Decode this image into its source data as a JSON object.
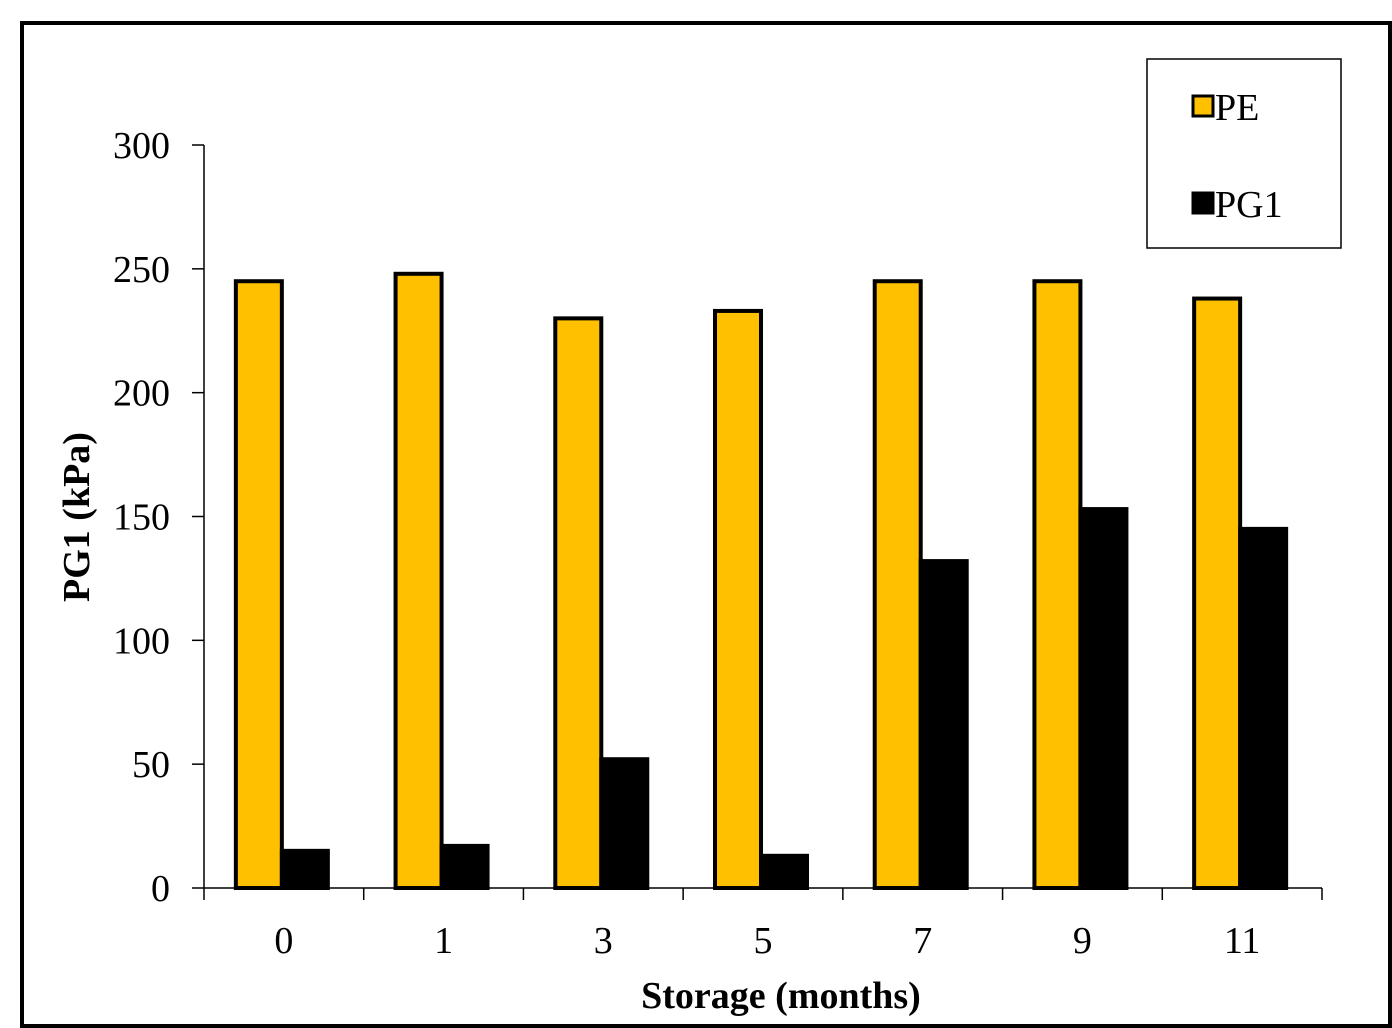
{
  "chart_data": {
    "type": "bar",
    "xlabel": "Storage (months)",
    "ylabel": "PG1 (kPa)",
    "categories": [
      "0",
      "1",
      "3",
      "5",
      "7",
      "9",
      "11"
    ],
    "series": [
      {
        "name": "PE",
        "values": [
          245,
          248,
          230,
          233,
          245,
          245,
          238
        ]
      },
      {
        "name": "PG1",
        "values": [
          15,
          17,
          52,
          13,
          132,
          153,
          145
        ]
      }
    ],
    "ylim": [
      0,
      300
    ],
    "yticks": [
      0,
      50,
      100,
      150,
      200,
      250,
      300
    ],
    "grid": false,
    "legend_position": "top-right"
  },
  "colors": {
    "PE": "#FFC000",
    "PG1": "#000000",
    "outline": "#000000"
  }
}
